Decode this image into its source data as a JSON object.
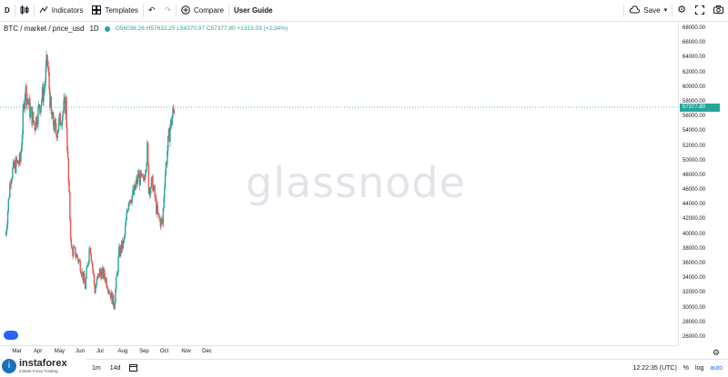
{
  "toolbar": {
    "symbol_short": "D",
    "indicators_label": "Indicators",
    "templates_label": "Templates",
    "compare_label": "Compare",
    "user_guide_label": "User Guide",
    "save_label": "Save"
  },
  "legend": {
    "title": "BTC / market / price_usd",
    "interval": "1D",
    "ohlc": "O56038.26 H57632.25 L54370.97 C57377.80 +1313.03 (+2.34%)"
  },
  "watermark": "glassnode",
  "last_price_label": "57377.80",
  "colors": {
    "up": "#26a69a",
    "down": "#ef5350",
    "accent": "#2962ff"
  },
  "bottom_bar": {
    "range_1m": "1m",
    "range_14d": "14d",
    "time": "12:22:35 (UTC)",
    "percent": "%",
    "log": "log",
    "auto": "auto"
  },
  "logo": {
    "name": "instaforex",
    "tagline": "Instant Forex Trading"
  },
  "chart_data": {
    "type": "candlestick",
    "title": "BTC / market / price_usd",
    "interval": "1D",
    "y_axis_ticks": [
      26000,
      28000,
      30000,
      32000,
      34000,
      36000,
      38000,
      40000,
      42000,
      44000,
      46000,
      48000,
      50000,
      52000,
      54000,
      56000,
      58000,
      60000,
      62000,
      64000,
      66000,
      68000
    ],
    "ylim": [
      25000,
      69000
    ],
    "x_axis_labels": [
      "Mar",
      "Apr",
      "May",
      "Jun",
      "Jul",
      "Aug",
      "Sep",
      "Oct",
      "Nov",
      "Dec"
    ],
    "last_price": 57377.8,
    "close_series": [
      {
        "x": "2021-02-13",
        "y": 40000
      },
      {
        "x": "2021-02-20",
        "y": 48000
      },
      {
        "x": "2021-02-27",
        "y": 49500
      },
      {
        "x": "2021-03-06",
        "y": 50000
      },
      {
        "x": "2021-03-13",
        "y": 60000
      },
      {
        "x": "2021-03-20",
        "y": 57000
      },
      {
        "x": "2021-03-27",
        "y": 55000
      },
      {
        "x": "2021-04-03",
        "y": 57500
      },
      {
        "x": "2021-04-10",
        "y": 60000
      },
      {
        "x": "2021-04-14",
        "y": 64000
      },
      {
        "x": "2021-04-20",
        "y": 56000
      },
      {
        "x": "2021-04-27",
        "y": 54000
      },
      {
        "x": "2021-05-04",
        "y": 56000
      },
      {
        "x": "2021-05-11",
        "y": 58000
      },
      {
        "x": "2021-05-15",
        "y": 47000
      },
      {
        "x": "2021-05-19",
        "y": 38000
      },
      {
        "x": "2021-05-25",
        "y": 37500
      },
      {
        "x": "2021-06-01",
        "y": 36000
      },
      {
        "x": "2021-06-08",
        "y": 33000
      },
      {
        "x": "2021-06-15",
        "y": 39000
      },
      {
        "x": "2021-06-22",
        "y": 32500
      },
      {
        "x": "2021-06-29",
        "y": 35000
      },
      {
        "x": "2021-07-06",
        "y": 34500
      },
      {
        "x": "2021-07-13",
        "y": 32500
      },
      {
        "x": "2021-07-20",
        "y": 30500
      },
      {
        "x": "2021-07-27",
        "y": 37500
      },
      {
        "x": "2021-08-03",
        "y": 39000
      },
      {
        "x": "2021-08-10",
        "y": 45000
      },
      {
        "x": "2021-08-17",
        "y": 45500
      },
      {
        "x": "2021-08-24",
        "y": 48000
      },
      {
        "x": "2021-08-31",
        "y": 47000
      },
      {
        "x": "2021-09-06",
        "y": 51500
      },
      {
        "x": "2021-09-08",
        "y": 46500
      },
      {
        "x": "2021-09-14",
        "y": 47000
      },
      {
        "x": "2021-09-21",
        "y": 42500
      },
      {
        "x": "2021-09-28",
        "y": 41500
      },
      {
        "x": "2021-10-01",
        "y": 47500
      },
      {
        "x": "2021-10-05",
        "y": 51500
      },
      {
        "x": "2021-10-08",
        "y": 54000
      },
      {
        "x": "2021-10-12",
        "y": 56000
      },
      {
        "x": "2021-10-15",
        "y": 57377.8
      }
    ]
  }
}
